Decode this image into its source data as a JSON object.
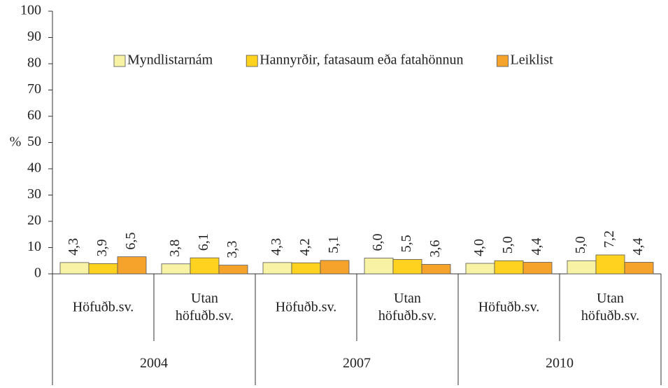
{
  "chart_data": {
    "type": "bar",
    "ylabel": "%",
    "categories": [
      "Höfuðb.sv.",
      "Utan höfuðb.sv.",
      "Höfuðb.sv.",
      "Utan höfuðb.sv.",
      "Höfuðb.sv.",
      "Utan höfuðb.sv."
    ],
    "group_labels": [
      "2004",
      "2007",
      "2010"
    ],
    "series": [
      {
        "name": "Myndlistarnám",
        "color": "#f8f2a4",
        "values": [
          4.3,
          3.8,
          4.3,
          6.0,
          4.0,
          5.0
        ],
        "value_labels": [
          "4,3",
          "3,8",
          "4,3",
          "6,0",
          "4,0",
          "5,0"
        ]
      },
      {
        "name": "Hannyrðir, fatasaum eða fatahönnun",
        "color": "#ffd21f",
        "values": [
          3.9,
          6.1,
          4.2,
          5.5,
          5.0,
          7.2
        ],
        "value_labels": [
          "3,9",
          "6,1",
          "4,2",
          "5,5",
          "5,0",
          "7,2"
        ]
      },
      {
        "name": "Leiklist",
        "color": "#f5a32b",
        "values": [
          6.5,
          3.3,
          5.1,
          3.6,
          4.4,
          4.4
        ],
        "value_labels": [
          "6,5",
          "3,3",
          "5,1",
          "3,6",
          "4,4",
          "4,4"
        ]
      }
    ],
    "ylim": [
      0,
      100
    ],
    "yticks": [
      0,
      10,
      20,
      30,
      40,
      50,
      60,
      70,
      80,
      90,
      100
    ],
    "grid": false
  }
}
